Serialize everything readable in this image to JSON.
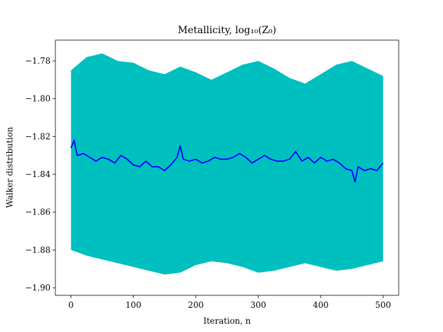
{
  "chart_data": {
    "type": "area",
    "title": "Metallicity, log₁₀(Z₀)",
    "xlabel": "Iteration, n",
    "ylabel": "Walker distribution",
    "xlim": [
      -25,
      525
    ],
    "ylim": [
      -1.904,
      -1.769
    ],
    "xticks": [
      0,
      100,
      200,
      300,
      400,
      500
    ],
    "yticks": [
      -1.9,
      -1.88,
      -1.86,
      -1.84,
      -1.82,
      -1.8,
      -1.78
    ],
    "ytick_labels": [
      "−1.90",
      "−1.88",
      "−1.86",
      "−1.84",
      "−1.82",
      "−1.80",
      "−1.78"
    ],
    "grid": false,
    "legend": "none",
    "colors": {
      "band": "#00bfbf",
      "median": "#0000ff"
    },
    "series": [
      {
        "kind": "band",
        "x": [
          0,
          25,
          50,
          75,
          100,
          125,
          150,
          175,
          200,
          225,
          250,
          275,
          300,
          325,
          350,
          375,
          400,
          425,
          450,
          475,
          500
        ],
        "upper": [
          -1.785,
          -1.778,
          -1.776,
          -1.78,
          -1.781,
          -1.785,
          -1.787,
          -1.783,
          -1.786,
          -1.79,
          -1.786,
          -1.782,
          -1.78,
          -1.784,
          -1.789,
          -1.792,
          -1.787,
          -1.782,
          -1.78,
          -1.784,
          -1.788
        ],
        "lower": [
          -1.88,
          -1.883,
          -1.885,
          -1.887,
          -1.889,
          -1.891,
          -1.893,
          -1.892,
          -1.888,
          -1.886,
          -1.887,
          -1.889,
          -1.892,
          -1.891,
          -1.889,
          -1.887,
          -1.889,
          -1.891,
          -1.89,
          -1.888,
          -1.886
        ]
      },
      {
        "kind": "line",
        "x": [
          0,
          5,
          10,
          20,
          30,
          40,
          50,
          60,
          70,
          80,
          90,
          100,
          110,
          120,
          130,
          140,
          150,
          160,
          170,
          175,
          180,
          190,
          200,
          210,
          220,
          230,
          240,
          250,
          260,
          270,
          280,
          290,
          300,
          310,
          320,
          330,
          340,
          350,
          360,
          370,
          380,
          390,
          400,
          410,
          420,
          430,
          440,
          450,
          455,
          460,
          470,
          480,
          490,
          500
        ],
        "values": [
          -1.826,
          -1.822,
          -1.83,
          -1.829,
          -1.831,
          -1.833,
          -1.831,
          -1.832,
          -1.834,
          -1.83,
          -1.832,
          -1.835,
          -1.836,
          -1.833,
          -1.836,
          -1.836,
          -1.838,
          -1.835,
          -1.831,
          -1.825,
          -1.832,
          -1.833,
          -1.832,
          -1.834,
          -1.833,
          -1.831,
          -1.832,
          -1.832,
          -1.831,
          -1.829,
          -1.831,
          -1.834,
          -1.832,
          -1.83,
          -1.832,
          -1.833,
          -1.833,
          -1.832,
          -1.828,
          -1.833,
          -1.831,
          -1.834,
          -1.831,
          -1.833,
          -1.832,
          -1.834,
          -1.837,
          -1.838,
          -1.844,
          -1.836,
          -1.838,
          -1.837,
          -1.838,
          -1.834
        ]
      }
    ]
  }
}
